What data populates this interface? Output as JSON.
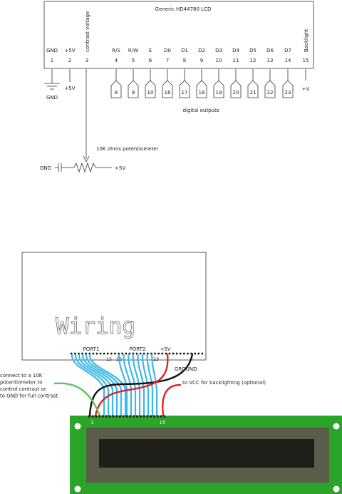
{
  "schematic": {
    "lcd_title": "Generic HD44780 LCD",
    "pin_labels": [
      "GND",
      "+5V",
      "contrast voltage",
      "R/S",
      "R/W",
      "E",
      "D0",
      "D1",
      "D2",
      "D3",
      "D4",
      "D5",
      "D6",
      "D7",
      "Backlight"
    ],
    "pin_numbers": [
      "1",
      "2",
      "3",
      "4",
      "5",
      "6",
      "7",
      "8",
      "9",
      "10",
      "11",
      "12",
      "13",
      "14",
      "15"
    ],
    "output_numbers": [
      "8",
      "9",
      "10",
      "16",
      "17",
      "18",
      "19",
      "20",
      "21",
      "22",
      "23"
    ],
    "gnd_label": "GND",
    "plus5v_label": "+5V",
    "plus_v_label": "+V",
    "digital_outputs_label": "digital outputs",
    "pot_label": "10K ohms potentiometer",
    "pot_gnd_label": "GND",
    "pot_5v_label": "+5V"
  },
  "wiring": {
    "board_logo": "Wiring",
    "port1_label": "PORT1",
    "port2_label": "PORT2",
    "plus5v_label": "+5V",
    "ground_label": "GROUND",
    "pin_15": "15",
    "pin_16": "16",
    "pin_23": "23",
    "contrast_note": [
      "connect to a 10K",
      "potentiometer to",
      "control contrast or",
      "to GND for full contrast"
    ],
    "backlight_note": "to VCC for backlighting (optional)",
    "lcd_pin_1": "1",
    "lcd_pin_15": "15"
  },
  "colors": {
    "data_wire": "#3bb7e8",
    "power_wire": "#e02020",
    "ground_wire": "#111111",
    "contrast_wire": "#5cc45c",
    "lcd_pcb": "#2aa52a",
    "lcd_bezel": "#5c5c4a",
    "lcd_screen": "#1f1f1a"
  }
}
